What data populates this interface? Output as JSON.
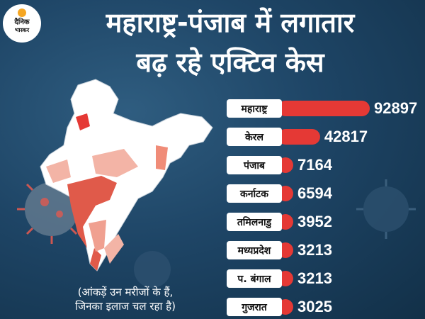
{
  "header": {
    "brand_line1": "दैनिक",
    "brand_line2": "भास्कर",
    "title_line1": "महाराष्ट्र-पंजाब में लगातार",
    "title_line2": "बढ़ रहे एक्टिव केस"
  },
  "footnote": {
    "line1": "(आंकड़ें उन मरीजों के हैं,",
    "line2": "जिनका इलाज चल रहा है)"
  },
  "colors": {
    "bar": "#e53935",
    "label_bg": "#ffffff",
    "label_text": "#111111",
    "value_text": "#ffffff",
    "background": "#1e4566"
  },
  "chart_data": {
    "type": "bar",
    "orientation": "horizontal",
    "categories": [
      "महाराष्ट्र",
      "केरल",
      "पंजाब",
      "कर्नाटक",
      "तमिलनाडु",
      "मध्यप्रदेश",
      "प. बंगाल",
      "गुजरात"
    ],
    "values": [
      92897,
      42817,
      7164,
      6594,
      3952,
      3213,
      3213,
      3025
    ]
  }
}
